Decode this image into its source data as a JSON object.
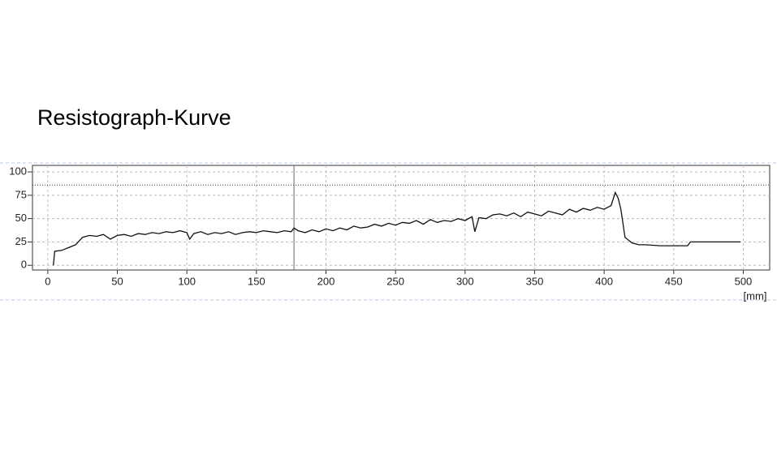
{
  "chart_data": {
    "type": "line",
    "title": "Resistograph-Kurve",
    "x_label": "[mm]",
    "x": [
      4,
      5,
      10,
      15,
      20,
      25,
      30,
      35,
      40,
      45,
      50,
      55,
      60,
      65,
      70,
      75,
      80,
      85,
      90,
      95,
      100,
      102,
      105,
      110,
      115,
      120,
      125,
      130,
      135,
      140,
      145,
      150,
      155,
      160,
      165,
      170,
      175,
      177,
      180,
      185,
      190,
      195,
      200,
      205,
      210,
      215,
      220,
      225,
      230,
      235,
      240,
      245,
      250,
      255,
      260,
      265,
      270,
      275,
      280,
      285,
      290,
      295,
      300,
      305,
      307,
      310,
      315,
      320,
      325,
      330,
      335,
      340,
      345,
      350,
      355,
      360,
      365,
      370,
      375,
      380,
      385,
      390,
      395,
      400,
      405,
      408,
      410,
      412,
      415,
      420,
      425,
      430,
      440,
      450,
      460,
      462,
      470,
      480,
      490,
      498
    ],
    "values": [
      0,
      15,
      16,
      19,
      22,
      30,
      32,
      31,
      33,
      28,
      32,
      33,
      31,
      34,
      33,
      35,
      34,
      36,
      35,
      37,
      35,
      28,
      34,
      36,
      33,
      35,
      34,
      36,
      33,
      35,
      36,
      35,
      37,
      36,
      35,
      37,
      36,
      40,
      37,
      35,
      38,
      36,
      39,
      37,
      40,
      38,
      42,
      40,
      41,
      44,
      42,
      45,
      43,
      46,
      45,
      48,
      44,
      49,
      46,
      48,
      47,
      50,
      48,
      52,
      36,
      51,
      50,
      54,
      55,
      53,
      56,
      52,
      57,
      55,
      53,
      58,
      56,
      54,
      60,
      57,
      61,
      59,
      62,
      60,
      64,
      78,
      72,
      60,
      30,
      24,
      22,
      22,
      21,
      21,
      21,
      25,
      25,
      25,
      25,
      25
    ],
    "color": "#111111",
    "xlim": [
      -11,
      519
    ],
    "ylim": [
      -5,
      107
    ],
    "xticks": [
      0,
      50,
      100,
      150,
      200,
      250,
      300,
      350,
      400,
      450,
      500
    ],
    "yticks": [
      0,
      25,
      50,
      75,
      100
    ],
    "grid": true,
    "reference_y": 86,
    "reference_x": 177
  }
}
